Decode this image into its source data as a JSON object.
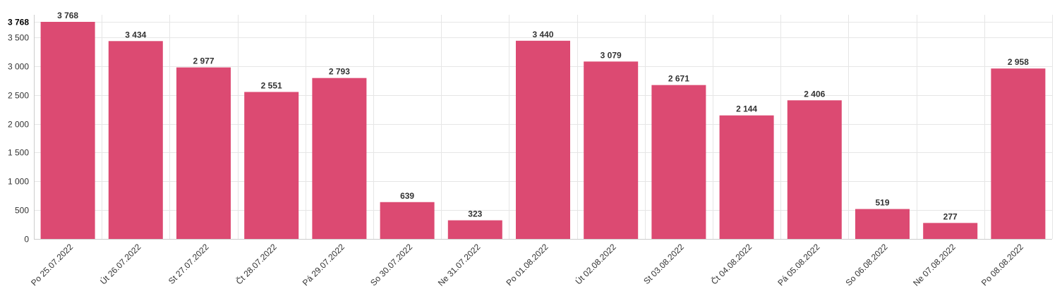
{
  "chart_data": {
    "type": "bar",
    "categories": [
      "Po 25.07.2022",
      "Út 26.07.2022",
      "St 27.07.2022",
      "Čt 28.07.2022",
      "Pá 29.07.2022",
      "So 30.07.2022",
      "Ne 31.07.2022",
      "Po 01.08.2022",
      "Út 02.08.2022",
      "St 03.08.2022",
      "Čt 04.08.2022",
      "Pá 05.08.2022",
      "So 06.08.2022",
      "Ne 07.08.2022",
      "Po 08.08.2022"
    ],
    "values": [
      3768,
      3434,
      2977,
      2551,
      2793,
      639,
      323,
      3440,
      3079,
      2671,
      2144,
      2406,
      519,
      277,
      2958
    ],
    "value_labels": [
      "3 768",
      "3 434",
      "2 977",
      "2 551",
      "2 793",
      "639",
      "323",
      "3 440",
      "3 079",
      "2 671",
      "2 144",
      "2 406",
      "519",
      "277",
      "2 958"
    ],
    "ylim": [
      0,
      3768
    ],
    "yticks": [
      0,
      500,
      1000,
      1500,
      2000,
      2500,
      3000,
      3500,
      3768
    ],
    "ytick_labels": [
      "0",
      "500",
      "1 000",
      "1 500",
      "2 000",
      "2 500",
      "3 000",
      "3 500",
      "3 768"
    ],
    "grid": true,
    "bar_color": "#dc4a72",
    "title": "",
    "xlabel": "",
    "ylabel": ""
  }
}
